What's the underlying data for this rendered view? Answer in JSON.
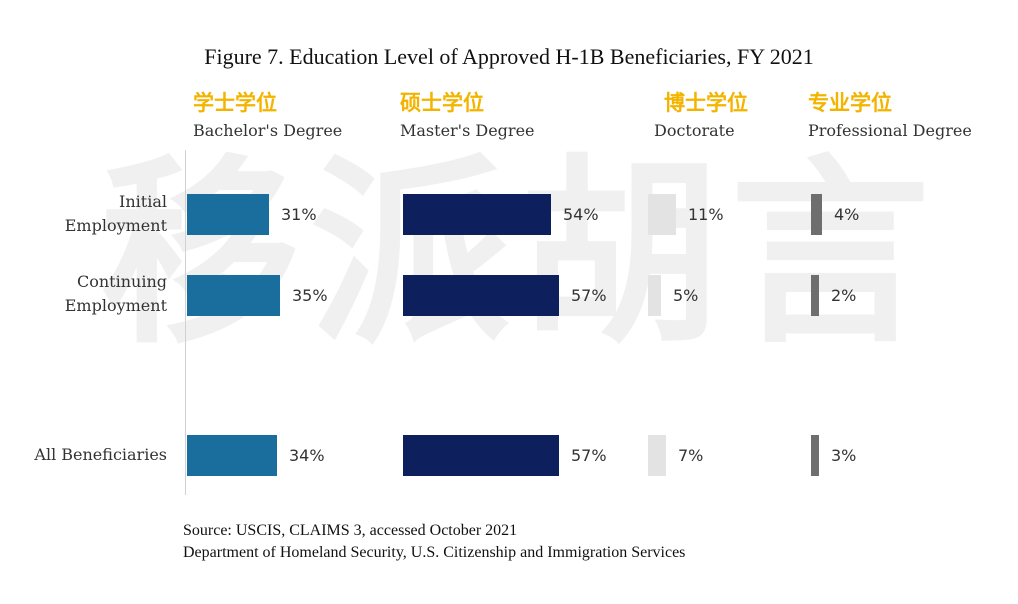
{
  "chart_data": {
    "type": "bar",
    "title": "Figure 7. Education Level of Approved H-1B Beneficiaries, FY 2021",
    "categories": [
      "Initial Employment",
      "Continuing Employment",
      "All Beneficiaries"
    ],
    "category_lines": [
      [
        "Initial",
        "Employment"
      ],
      [
        "Continuing",
        "Employment"
      ],
      [
        "All Beneficiaries"
      ]
    ],
    "value_format": "percent",
    "series": [
      {
        "name": "Bachelor's Degree",
        "name_zh": "学士学位",
        "color": "#1a6e9e",
        "values": [
          31,
          35,
          34
        ],
        "labels": [
          "31%",
          "35%",
          "34%"
        ]
      },
      {
        "name": "Master's Degree",
        "name_zh": "硕士学位",
        "color": "#0d1f5c",
        "values": [
          54,
          57,
          57
        ],
        "labels": [
          "54%",
          "57%",
          "57%"
        ]
      },
      {
        "name": "Doctorate",
        "name_zh": "博士学位",
        "color": "#e3e3e3",
        "values": [
          11,
          5,
          7
        ],
        "labels": [
          "11%",
          "5%",
          "7%"
        ]
      },
      {
        "name": "Professional Degree",
        "name_zh": "专业学位",
        "color": "#6e6e6e",
        "values": [
          4,
          2,
          3
        ],
        "labels": [
          "4%",
          "2%",
          "3%"
        ]
      }
    ]
  },
  "watermark": "移派胡言",
  "source": {
    "line1": "Source: USCIS, CLAIMS 3, accessed October 2021",
    "line2": "Department of Homeland Security, U.S. Citizenship and Immigration Services"
  }
}
